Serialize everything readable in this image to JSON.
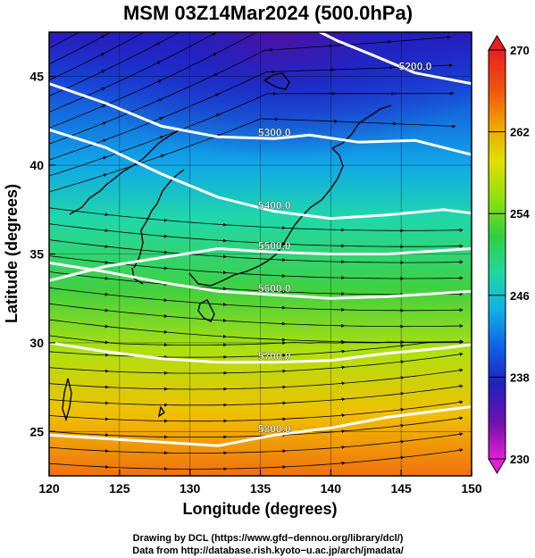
{
  "title": "MSM 03Z14Mar2024 (500.0hPa)",
  "x_axis": {
    "label": "Longitude (degrees)",
    "range": [
      120,
      150
    ],
    "ticks": [
      "120",
      "125",
      "130",
      "135",
      "140",
      "145",
      "150"
    ]
  },
  "y_axis": {
    "label": "Latitude  (degrees)",
    "range": [
      22.5,
      47.5
    ],
    "ticks": [
      "25",
      "30",
      "35",
      "40",
      "45"
    ]
  },
  "colorbar": {
    "range": [
      230,
      270
    ],
    "tick_labels": [
      "270",
      "262",
      "254",
      "246",
      "238",
      "230"
    ],
    "colors": [
      "#e020d0",
      "#7010b0",
      "#2020c0",
      "#1060e8",
      "#10b0e8",
      "#20d8a0",
      "#30d040",
      "#90e010",
      "#e0e000",
      "#f0a000",
      "#f05010",
      "#e82020"
    ]
  },
  "contours": [
    {
      "label": "5200.0",
      "points": [
        [
          138,
          48
        ],
        [
          140.5,
          47
        ],
        [
          143,
          46.2
        ],
        [
          146,
          45.2
        ],
        [
          148,
          44.9
        ],
        [
          150,
          44.6
        ]
      ]
    },
    {
      "label": "5300.0",
      "points": [
        [
          120,
          44.6
        ],
        [
          124,
          43.5
        ],
        [
          128,
          42.2
        ],
        [
          132,
          41.6
        ],
        [
          136,
          41.5
        ],
        [
          138.5,
          41.7
        ],
        [
          142,
          41.3
        ],
        [
          146,
          41.4
        ],
        [
          150,
          40.6
        ]
      ]
    },
    {
      "label": "5400.0",
      "points": [
        [
          120,
          42
        ],
        [
          124,
          41
        ],
        [
          128,
          39.5
        ],
        [
          132,
          38.2
        ],
        [
          136,
          37.4
        ],
        [
          140,
          37
        ],
        [
          144,
          37.2
        ],
        [
          148,
          37.5
        ],
        [
          150,
          37.3
        ]
      ]
    },
    {
      "label": "5500.0",
      "points": [
        [
          120,
          33.5
        ],
        [
          124,
          34.3
        ],
        [
          128,
          34.8
        ],
        [
          132,
          35.3
        ],
        [
          136,
          35.1
        ],
        [
          140,
          35
        ],
        [
          144,
          35
        ],
        [
          148,
          35.2
        ],
        [
          150,
          35.3
        ]
      ]
    },
    {
      "label": "5600.0",
      "points": [
        [
          120,
          34.5
        ],
        [
          124,
          34
        ],
        [
          128,
          33.4
        ],
        [
          132,
          32.9
        ],
        [
          136,
          32.7
        ],
        [
          140,
          32.5
        ],
        [
          144,
          32.6
        ],
        [
          148,
          32.8
        ],
        [
          150,
          32.9
        ]
      ]
    },
    {
      "label": "5700.0",
      "points": [
        [
          120,
          30
        ],
        [
          124,
          29.5
        ],
        [
          128,
          29.1
        ],
        [
          132,
          28.9
        ],
        [
          136,
          28.9
        ],
        [
          140,
          29
        ],
        [
          144,
          29.4
        ],
        [
          148,
          29.7
        ],
        [
          150,
          29.9
        ]
      ]
    },
    {
      "label": "5800.0",
      "points": [
        [
          120,
          24.8
        ],
        [
          124,
          24.6
        ],
        [
          128,
          24.4
        ],
        [
          132,
          24.2
        ],
        [
          136,
          24.8
        ],
        [
          140,
          25.2
        ],
        [
          144,
          25.8
        ],
        [
          148,
          26.2
        ],
        [
          150,
          26.4
        ]
      ]
    }
  ]
}
